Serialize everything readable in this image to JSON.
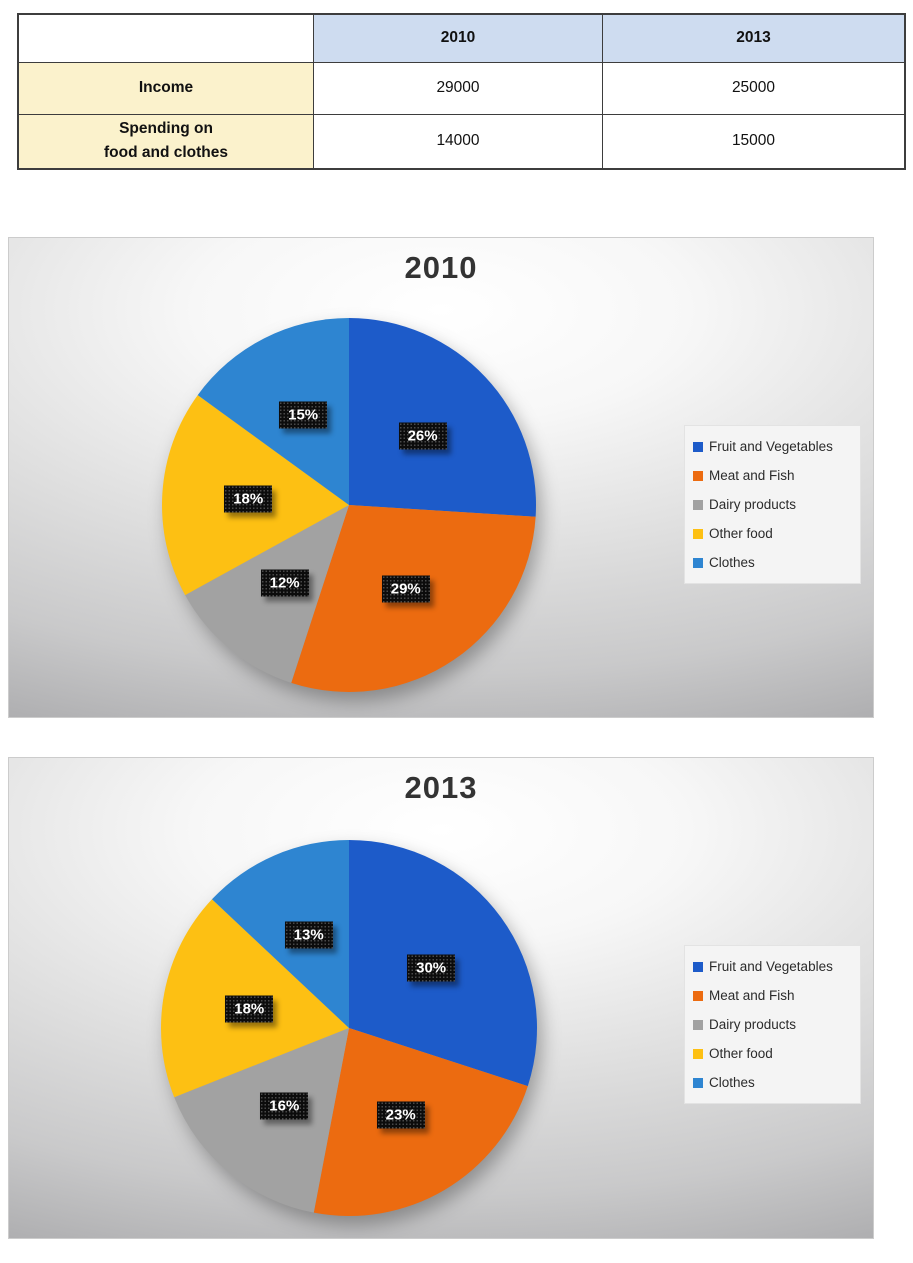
{
  "table": {
    "header_blank": "",
    "col_headers": [
      "2010",
      "2013"
    ],
    "rows": [
      {
        "label_lines": [
          "Income"
        ],
        "values": [
          "29000",
          "25000"
        ]
      },
      {
        "label_lines": [
          "Spending on",
          "food and clothes"
        ],
        "values": [
          "14000",
          "15000"
        ]
      }
    ],
    "colors": {
      "header_bg": "#cedcf0",
      "label_bg": "#fbf2cc",
      "border": "#3d3d3d"
    }
  },
  "chart_data": [
    {
      "type": "pie",
      "title": "2010",
      "categories": [
        "Fruit and Vegetables",
        "Meat and Fish",
        "Dairy products",
        "Other food",
        "Clothes"
      ],
      "values": [
        26,
        29,
        12,
        18,
        15
      ],
      "unit": "%",
      "colors": [
        "#1d5bc9",
        "#ec6b10",
        "#a2a2a2",
        "#fdc013",
        "#2e85d1"
      ],
      "legend_position": "right",
      "start_angle_deg": 0,
      "direction": "clockwise",
      "data_label_style": "black-box-white-text"
    },
    {
      "type": "pie",
      "title": "2013",
      "categories": [
        "Fruit and Vegetables",
        "Meat and Fish",
        "Dairy products",
        "Other food",
        "Clothes"
      ],
      "values": [
        30,
        23,
        16,
        18,
        13
      ],
      "unit": "%",
      "colors": [
        "#1d5bc9",
        "#ec6b10",
        "#a2a2a2",
        "#fdc013",
        "#2e85d1"
      ],
      "legend_position": "right",
      "start_angle_deg": 0,
      "direction": "clockwise",
      "data_label_style": "black-box-white-text"
    }
  ]
}
